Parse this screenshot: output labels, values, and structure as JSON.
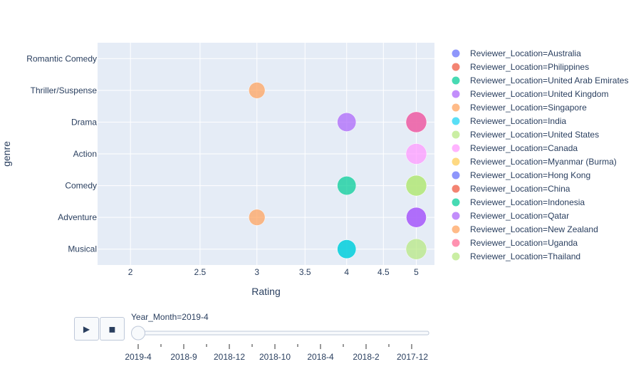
{
  "chart_data": {
    "type": "scatter",
    "xlabel": "Rating",
    "ylabel": "genre",
    "x_ticks": [
      2,
      2.5,
      3,
      3.5,
      4,
      4.5,
      5
    ],
    "x_scale": "log",
    "xlim": [
      1.8,
      5.3
    ],
    "categories": [
      "Musical",
      "Adventure",
      "Comedy",
      "Action",
      "Drama",
      "Thriller/Suspense",
      "Romantic Comedy"
    ],
    "grid": true,
    "legend_position": "right",
    "series": [
      {
        "name": "Reviewer_Location=Australia",
        "color": "#636efa",
        "points": []
      },
      {
        "name": "Reviewer_Location=Philippines",
        "color": "#EF553B",
        "points": []
      },
      {
        "name": "Reviewer_Location=United Arab Emirates",
        "color": "#00cc96",
        "points": [
          {
            "x": 4,
            "y": "Comedy",
            "size": 0.8
          },
          {
            "x": 4,
            "y": "Musical",
            "size": 0.8
          }
        ]
      },
      {
        "name": "Reviewer_Location=United Kingdom",
        "color": "#ab63fa",
        "points": [
          {
            "x": 4,
            "y": "Drama",
            "size": 0.8
          },
          {
            "x": 5,
            "y": "Adventure",
            "size": 0.9
          },
          {
            "x": 5,
            "y": "Drama",
            "size": 0.95
          }
        ]
      },
      {
        "name": "Reviewer_Location=Singapore",
        "color": "#FFA15A",
        "points": [
          {
            "x": 3,
            "y": "Thriller/Suspense",
            "size": 0.6
          },
          {
            "x": 3,
            "y": "Adventure",
            "size": 0.6
          }
        ]
      },
      {
        "name": "Reviewer_Location=India",
        "color": "#19d3f3",
        "points": [
          {
            "x": 4,
            "y": "Musical",
            "size": 0.8
          }
        ]
      },
      {
        "name": "Reviewer_Location=United States",
        "color": "#B6E880",
        "points": [
          {
            "x": 5,
            "y": "Comedy",
            "size": 0.95
          },
          {
            "x": 5,
            "y": "Musical",
            "size": 0.95
          }
        ]
      },
      {
        "name": "Reviewer_Location=Canada",
        "color": "#FF97FF",
        "points": [
          {
            "x": 5,
            "y": "Action",
            "size": 0.95
          }
        ]
      },
      {
        "name": "Reviewer_Location=Myanmar (Burma)",
        "color": "#FECB52",
        "points": []
      },
      {
        "name": "Reviewer_Location=Hong Kong",
        "color": "#636efa",
        "points": []
      },
      {
        "name": "Reviewer_Location=China",
        "color": "#EF553B",
        "points": []
      },
      {
        "name": "Reviewer_Location=Indonesia",
        "color": "#00cc96",
        "points": []
      },
      {
        "name": "Reviewer_Location=Qatar",
        "color": "#ab63fa",
        "points": [
          {
            "x": 5,
            "y": "Adventure",
            "size": 0.9
          }
        ]
      },
      {
        "name": "Reviewer_Location=New Zealand",
        "color": "#FFA15A",
        "points": []
      },
      {
        "name": "Reviewer_Location=Uganda",
        "color": "#FF6692",
        "points": [
          {
            "x": 5,
            "y": "Drama",
            "size": 0.95
          }
        ]
      },
      {
        "name": "Reviewer_Location=Thailand",
        "color": "#B6E880",
        "points": [
          {
            "x": 5,
            "y": "Comedy",
            "size": 0.95
          }
        ]
      }
    ]
  },
  "slider": {
    "current_label": "Year_Month=2019-4",
    "steps": [
      "2019-4",
      "2018-9",
      "2018-12",
      "2018-10",
      "2018-4",
      "2018-2",
      "2017-12"
    ],
    "active_index": 0
  },
  "buttons": {
    "play": "▶",
    "stop": "◼"
  },
  "colors": {
    "plot_bg": "#e5ecf6",
    "grid": "#ffffff",
    "text": "#2a3f5f"
  }
}
